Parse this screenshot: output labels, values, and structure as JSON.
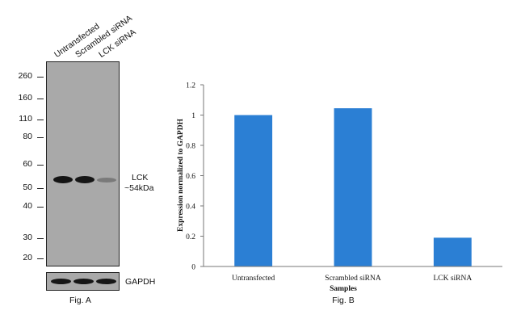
{
  "figure_a": {
    "lanes": [
      "Untransfected",
      "Scrambled siRNA",
      "LCK siRNA"
    ],
    "mw_markers": [
      "260",
      "160",
      "110",
      "80",
      "60",
      "50",
      "40",
      "30",
      "20"
    ],
    "target_label": "LCK",
    "target_size": "~54kDa",
    "loading_control": "GAPDH",
    "caption": "Fig. A"
  },
  "chart_data": {
    "type": "bar",
    "categories": [
      "Untransfected",
      "Scrambled siRNA",
      "LCK siRNA"
    ],
    "values": [
      1.0,
      1.045,
      0.19
    ],
    "ylabel": "Expression normalized to GAPDH",
    "xlabel": "Samples",
    "ylim": [
      0,
      1.2
    ],
    "yticks": [
      "0",
      "0.2",
      "0.4",
      "0.6",
      "0.8",
      "1",
      "1.2"
    ],
    "ytick_values": [
      0,
      0.2,
      0.4,
      0.6,
      0.8,
      1.0,
      1.2
    ],
    "grid": false,
    "bar_color": "#2b7fd4",
    "caption": "Fig. B"
  }
}
